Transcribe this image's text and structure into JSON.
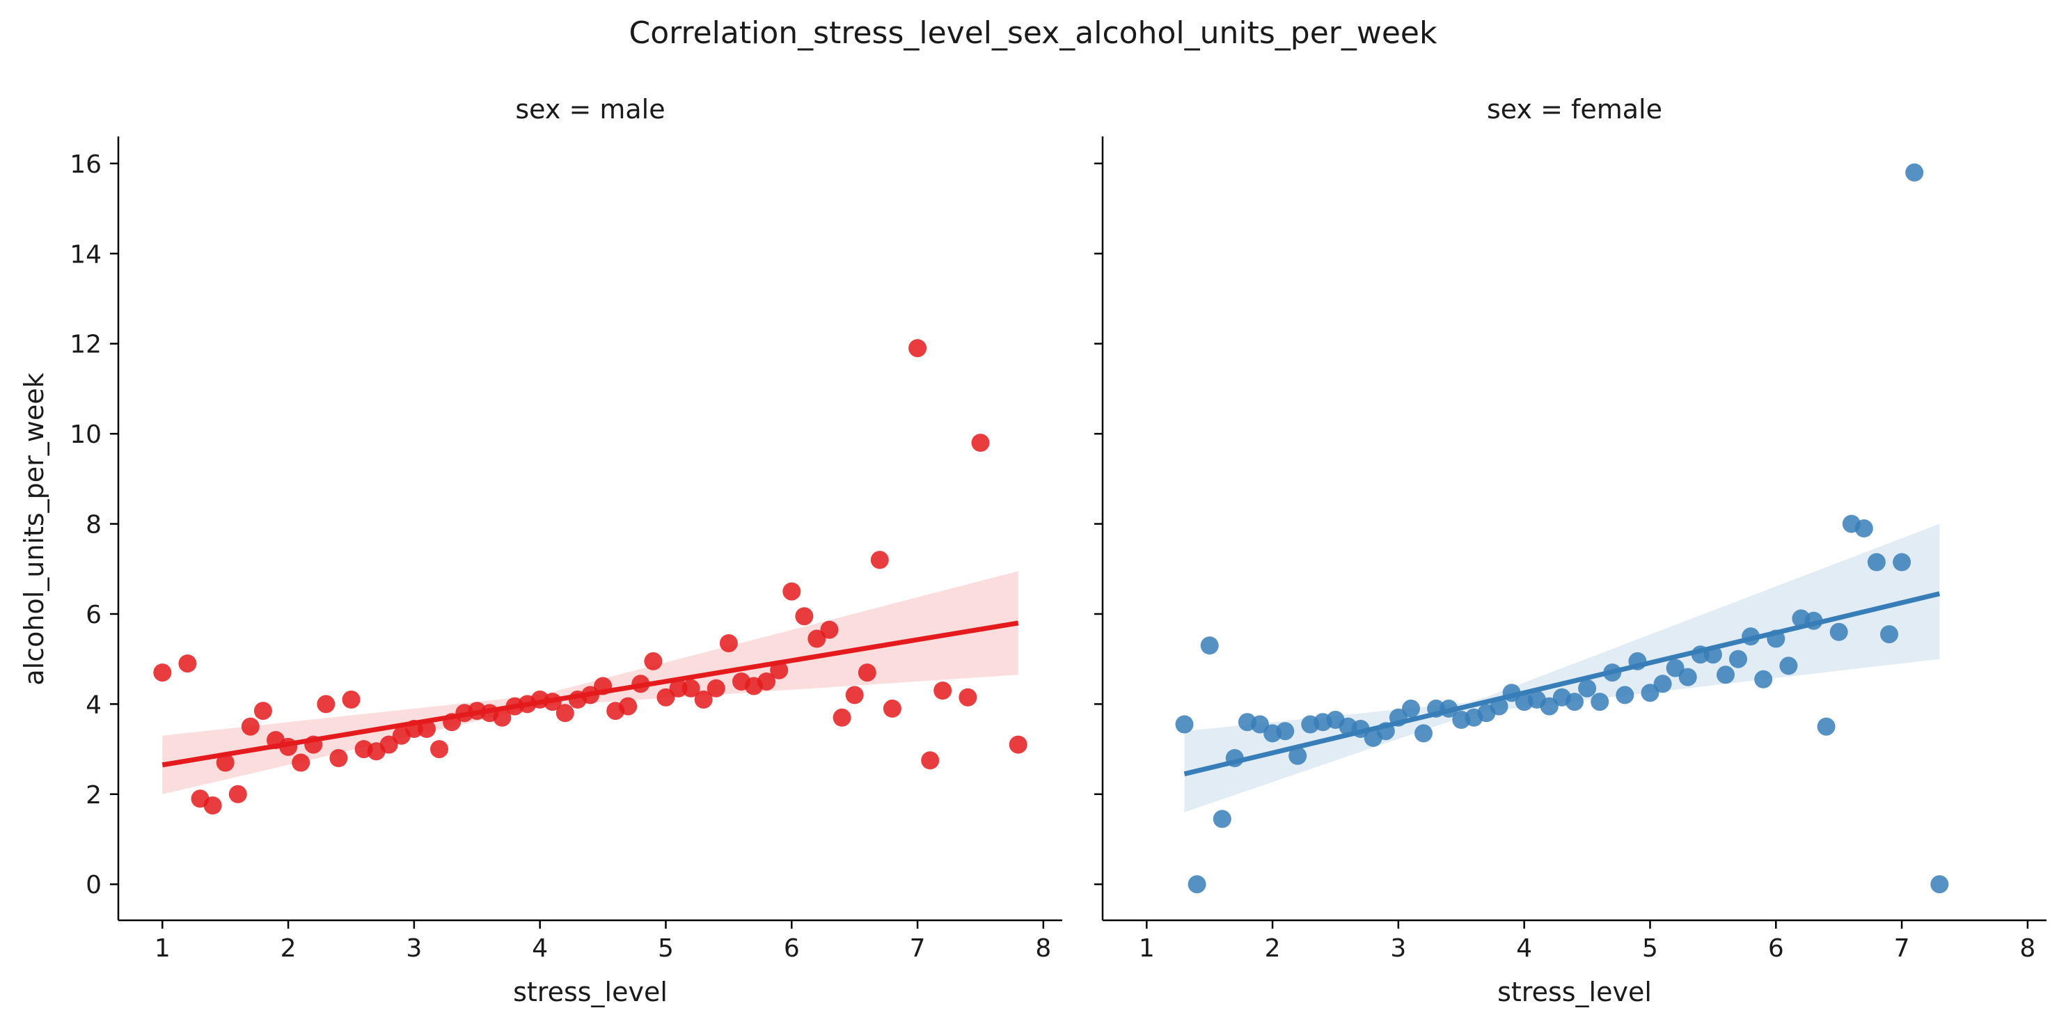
{
  "chart_data": {
    "type": "scatter",
    "title": "Correlation_stress_level_sex_alcohol_units_per_week",
    "ylabel": "alcohol_units_per_week",
    "xlim": [
      0.65,
      8.15
    ],
    "ylim": [
      -0.8,
      16.6
    ],
    "x_ticks": [
      "1",
      "2",
      "3",
      "4",
      "5",
      "6",
      "7",
      "8"
    ],
    "y_ticks": [
      "0",
      "2",
      "4",
      "6",
      "8",
      "10",
      "12",
      "14",
      "16"
    ],
    "panels": [
      {
        "title": "sex = male",
        "xlabel": "stress_level",
        "color": "#e41a1c",
        "band_color": "#e41a1c",
        "regression": {
          "x": [
            1.0,
            7.8
          ],
          "y": [
            2.65,
            5.8
          ]
        },
        "ci_band": {
          "x": [
            1.0,
            4.0,
            7.8
          ],
          "lower": [
            2.0,
            3.95,
            4.65
          ],
          "upper": [
            3.3,
            4.2,
            6.95
          ]
        },
        "points": {
          "x": [
            1.0,
            1.2,
            1.3,
            1.4,
            1.5,
            1.6,
            1.7,
            1.8,
            1.9,
            2.0,
            2.1,
            2.2,
            2.3,
            2.4,
            2.5,
            2.6,
            2.7,
            2.8,
            2.9,
            3.0,
            3.1,
            3.2,
            3.3,
            3.4,
            3.5,
            3.6,
            3.7,
            3.8,
            3.9,
            4.0,
            4.1,
            4.2,
            4.3,
            4.4,
            4.5,
            4.6,
            4.7,
            4.8,
            4.9,
            5.0,
            5.1,
            5.2,
            5.3,
            5.4,
            5.5,
            5.6,
            5.7,
            5.8,
            5.9,
            6.0,
            6.1,
            6.2,
            6.3,
            6.4,
            6.5,
            6.6,
            6.7,
            6.8,
            7.0,
            7.1,
            7.2,
            7.4,
            7.5,
            7.8
          ],
          "y": [
            4.7,
            4.9,
            1.9,
            1.75,
            2.7,
            2.0,
            3.5,
            3.85,
            3.2,
            3.05,
            2.7,
            3.1,
            4.0,
            2.8,
            4.1,
            3.0,
            2.95,
            3.1,
            3.3,
            3.45,
            3.45,
            3.0,
            3.6,
            3.8,
            3.85,
            3.8,
            3.7,
            3.95,
            4.0,
            4.1,
            4.05,
            3.8,
            4.1,
            4.2,
            4.4,
            3.85,
            3.95,
            4.45,
            4.95,
            4.15,
            4.35,
            4.35,
            4.1,
            4.35,
            5.35,
            4.5,
            4.4,
            4.5,
            4.75,
            6.5,
            5.95,
            5.45,
            5.65,
            3.7,
            4.2,
            4.7,
            7.2,
            3.9,
            11.9,
            2.75,
            4.3,
            4.15,
            9.8,
            3.1
          ]
        }
      },
      {
        "title": "sex = female",
        "xlabel": "stress_level",
        "color": "#377eb8",
        "band_color": "#377eb8",
        "regression": {
          "x": [
            1.3,
            7.3
          ],
          "y": [
            2.45,
            6.45
          ]
        },
        "ci_band": {
          "x": [
            1.3,
            3.6,
            7.3
          ],
          "lower": [
            1.6,
            3.8,
            5.0
          ],
          "upper": [
            3.4,
            4.05,
            8.0
          ]
        },
        "points": {
          "x": [
            1.3,
            1.4,
            1.5,
            1.6,
            1.7,
            1.8,
            1.9,
            2.0,
            2.1,
            2.2,
            2.3,
            2.4,
            2.5,
            2.6,
            2.7,
            2.8,
            2.9,
            3.0,
            3.1,
            3.2,
            3.3,
            3.4,
            3.5,
            3.6,
            3.7,
            3.8,
            3.9,
            4.0,
            4.1,
            4.2,
            4.3,
            4.4,
            4.5,
            4.6,
            4.7,
            4.8,
            4.9,
            5.0,
            5.1,
            5.2,
            5.3,
            5.4,
            5.5,
            5.6,
            5.7,
            5.8,
            5.9,
            6.0,
            6.1,
            6.2,
            6.3,
            6.4,
            6.5,
            6.6,
            6.7,
            6.8,
            6.9,
            7.0,
            7.1,
            7.3
          ],
          "y": [
            3.55,
            0.0,
            5.3,
            1.45,
            2.8,
            3.6,
            3.55,
            3.35,
            3.4,
            2.85,
            3.55,
            3.6,
            3.65,
            3.5,
            3.45,
            3.25,
            3.4,
            3.7,
            3.9,
            3.35,
            3.9,
            3.9,
            3.65,
            3.7,
            3.8,
            3.95,
            4.25,
            4.05,
            4.1,
            3.95,
            4.15,
            4.05,
            4.35,
            4.05,
            4.7,
            4.2,
            4.95,
            4.25,
            4.45,
            4.8,
            4.6,
            5.1,
            5.1,
            4.65,
            5.0,
            5.5,
            4.55,
            5.45,
            4.85,
            5.9,
            5.85,
            3.5,
            5.6,
            8.0,
            7.9,
            7.15,
            5.55,
            7.15,
            15.8,
            0.0
          ]
        }
      }
    ]
  }
}
